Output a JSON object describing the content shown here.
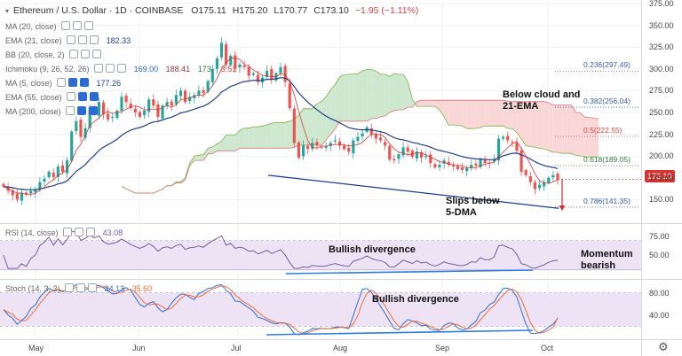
{
  "header": {
    "symbol": "Ethereum / U.S. Dollar · 1D · COINBASE",
    "open": "O175.11",
    "high": "H175.20",
    "low": "L170.77",
    "close": "C173.10",
    "change": "−1.95 (−1.11%)"
  },
  "indicators": {
    "ma20": "MA (20, close)",
    "ema21": "EMA (21, close)",
    "ema21_value": "182.33",
    "bb": "BB (20, close, 2)",
    "ichimoku": "Ichimoku (9, 26, 52, 26)",
    "ichimoku_v1": "169.00",
    "ichimoku_v2": "188.41",
    "ichimoku_v3": "173.",
    "ichimoku_v4": "3.51",
    "ma5": "MA (5, close)",
    "ma5_value": "177.26",
    "ema55": "EMA (55, close)",
    "ma200": "MA (200, close)"
  },
  "rsi": {
    "label": "RSI (14, close)",
    "value": "43.08"
  },
  "stoch": {
    "label": "Stoch (14, 3, 3)",
    "k": "34.13",
    "d": "35.60"
  },
  "annotations": {
    "below_cloud_1": "Below cloud and",
    "below_cloud_2": "21-EMA",
    "slips_1": "Slips below",
    "slips_2": "5-DMA",
    "rsi_div": "Bullish divergence",
    "momentum_1": "Momentum",
    "momentum_2": "bearish",
    "stoch_div": "Bullish divergence"
  },
  "fib_levels": [
    {
      "label": "0.236(297.49)",
      "value": 297.49,
      "color": "#3a5fa8"
    },
    {
      "label": "0.382(256.04)",
      "value": 256.04,
      "color": "#3a5fa8"
    },
    {
      "label": "0.5(222.55)",
      "value": 222.55,
      "color": "#d64545"
    },
    {
      "label": "0.618(189.05)",
      "value": 189.05,
      "color": "#2e7d32"
    },
    {
      "label": "0.786(141.35)",
      "value": 141.35,
      "color": "#3a5fa8"
    }
  ],
  "last_price": "173.10",
  "colors": {
    "up": "#26a69a",
    "down": "#ef5350",
    "ema21": "#1f3f8f",
    "ma5": "#d32f2f",
    "cloud_bull": "#c8e6c9",
    "cloud_bear": "#f8d3d3",
    "trendline": "#1a3d8f",
    "rsi_band": "#ede3f5",
    "rsi_line": "#7b5aa6",
    "stoch_k": "#2f6dd6",
    "stoch_d": "#ef6c3a",
    "divergence": "#2b7de0",
    "arrow": "#d32f2f"
  },
  "chart_data": [
    {
      "type": "candlestick",
      "title": "Ethereum / U.S. Dollar · 1D · COINBASE",
      "ylim": [
        125,
        375
      ],
      "yticks": [
        375,
        350,
        325,
        300,
        275,
        250,
        225,
        200,
        175,
        150
      ],
      "ytick_labels": [
        "375.00",
        "350.00",
        "325.00",
        "300.00",
        "275.00",
        "250.00",
        "225.00",
        "200.00",
        "175.00",
        "150.00"
      ],
      "x_labels": [
        "May",
        "Jun",
        "Jul",
        "Aug",
        "Sep",
        "Oct"
      ],
      "closes": [
        165,
        160,
        155,
        150,
        158,
        156,
        160,
        162,
        170,
        174,
        182,
        176,
        188,
        182,
        195,
        228,
        240,
        222,
        232,
        255,
        248,
        262,
        248,
        242,
        245,
        252,
        268,
        262,
        255,
        250,
        245,
        252,
        265,
        258,
        245,
        258,
        262,
        258,
        270,
        275,
        262,
        268,
        270,
        275,
        272,
        286,
        300,
        312,
        330,
        305,
        315,
        300,
        305,
        302,
        292,
        295,
        285,
        290,
        298,
        288,
        295,
        302,
        285,
        255,
        215,
        198,
        213,
        208,
        215,
        212,
        210,
        211,
        215,
        218,
        212,
        208,
        205,
        218,
        222,
        226,
        233,
        225,
        220,
        218,
        212,
        196,
        195,
        202,
        210,
        205,
        199,
        205,
        198,
        200,
        192,
        187,
        190,
        195,
        190,
        188,
        185,
        184,
        186,
        190,
        189,
        196,
        192,
        192,
        196,
        220,
        222,
        218,
        216,
        206,
        182,
        178,
        170,
        162,
        167,
        170,
        175,
        178,
        173
      ],
      "ema21": "derived from closes",
      "ma5": "derived from closes",
      "cloud": "Ichimoku span A / span B derived from closes",
      "trendline": {
        "from": [
          0.41,
          178
        ],
        "to": [
          0.855,
          140
        ]
      }
    },
    {
      "type": "line",
      "name": "RSI (14, close)",
      "ylim": [
        20,
        90
      ],
      "yticks": [
        75,
        50
      ],
      "ytick_labels": [
        "75.00",
        "50.00"
      ],
      "last": 43.08
    },
    {
      "type": "line",
      "name": "Stoch (14, 3, 3)",
      "ylim": [
        0,
        100
      ],
      "yticks": [
        80,
        40
      ],
      "ytick_labels": [
        "80.00",
        "40.00"
      ],
      "k_last": 34.13,
      "d_last": 35.6
    }
  ]
}
